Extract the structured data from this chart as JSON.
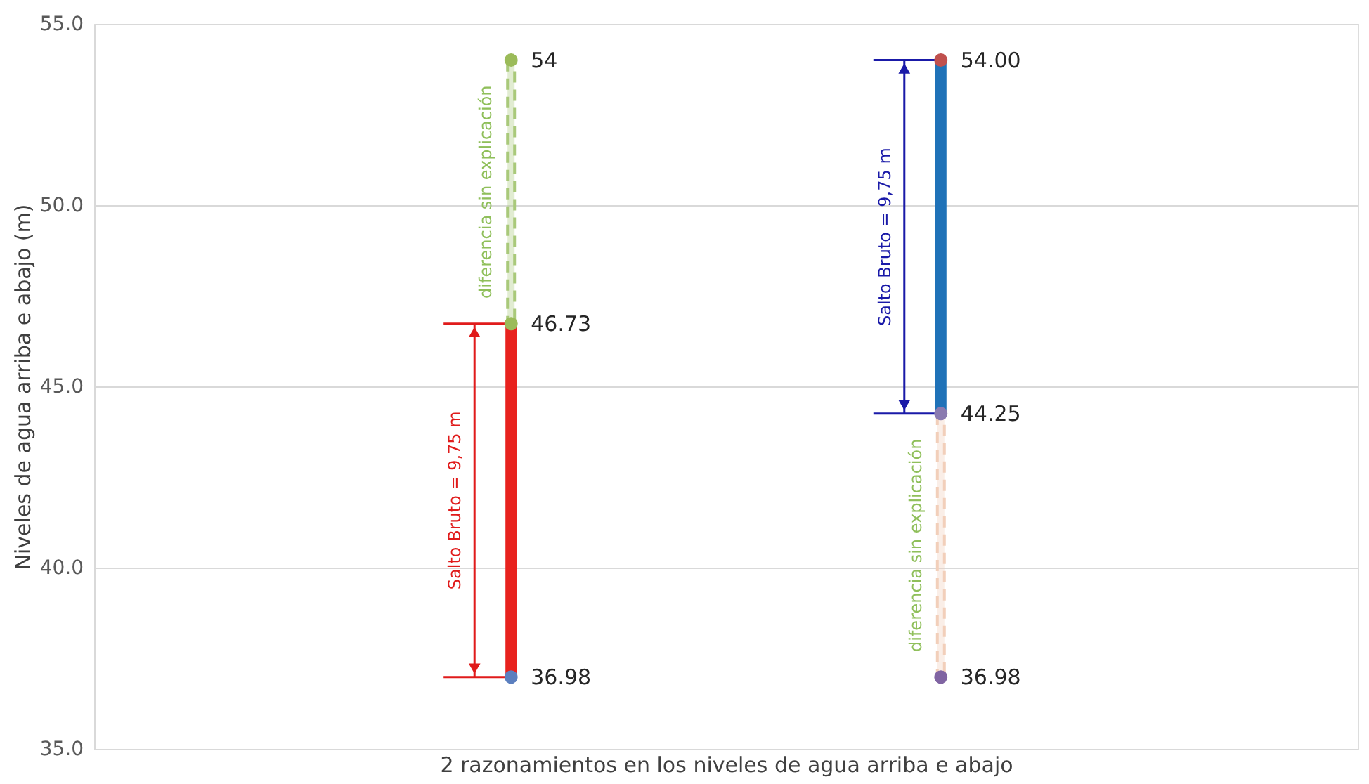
{
  "chart_data": {
    "type": "bar",
    "xlabel": "2 razonamientos en los niveles de agua arriba e abajo",
    "ylabel": "Niveles de agua arriba e abajo (m)",
    "categories": [
      null,
      null
    ],
    "series": [
      {
        "colors": [
          "#e8221e",
          "#1f72b8"
        ],
        "base": [
          36.98,
          44.25
        ],
        "values": [
          9.75,
          9.75
        ],
        "line_style": "solid"
      },
      {
        "colors": [
          "#a9c97a",
          "#f2cfba"
        ],
        "base": [
          46.73,
          36.98
        ],
        "values": [
          7.27,
          7.27
        ],
        "line_style": "dashed"
      },
      {
        "type": "scatter",
        "colors": [
          "#5b7fbf",
          "#8064a2"
        ],
        "values": [
          36.98,
          36.98
        ],
        "value_labels": [
          "36.98",
          "36.98"
        ],
        "marker": "circle"
      },
      {
        "type": "scatter",
        "colors": [
          "#9bbb59",
          "#8a7ab0"
        ],
        "values": [
          46.73,
          44.25
        ],
        "value_labels": [
          "46.73",
          "44.25"
        ],
        "marker": "circle"
      },
      {
        "type": "scatter",
        "colors": [
          "#9bbb59",
          "#c0504d"
        ],
        "values": [
          54,
          54.0
        ],
        "value_labels": [
          "54",
          "54.00"
        ],
        "marker": "circle"
      }
    ],
    "annotations": [
      "Salto Bruto = 9,75 m",
      "diferencia sin explicación",
      "Salto Bruto = 9,75 m",
      "diferencia sin explicación"
    ],
    "ylim": [
      35,
      55
    ],
    "yticks": [
      {
        "value": 35,
        "label": "35.0"
      },
      {
        "value": 40,
        "label": "40.0"
      },
      {
        "value": 45,
        "label": "45.0"
      },
      {
        "value": 50,
        "label": "50.0"
      },
      {
        "value": 55,
        "label": "55.0"
      }
    ],
    "grid": "y",
    "tick_labels": "y"
  }
}
